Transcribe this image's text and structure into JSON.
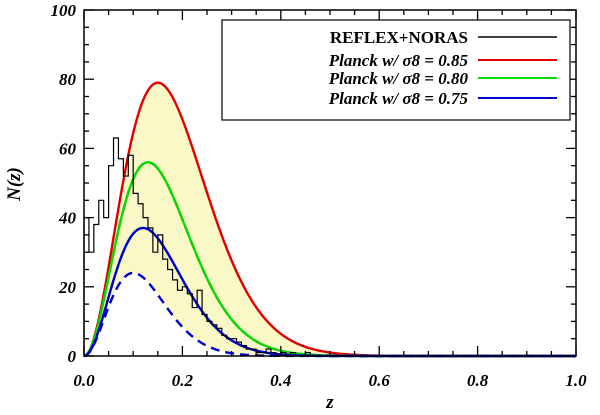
{
  "chart_data": {
    "type": "line",
    "title": "",
    "xlabel": "z",
    "ylabel": "N(z)",
    "xlim": [
      0.0,
      1.0
    ],
    "ylim": [
      0,
      100
    ],
    "x_ticks": [
      {
        "value": 0.0,
        "label": "0.0"
      },
      {
        "value": 0.2,
        "label": "0.2"
      },
      {
        "value": 0.4,
        "label": "0.4"
      },
      {
        "value": 0.6,
        "label": "0.6"
      },
      {
        "value": 0.8,
        "label": "0.8"
      },
      {
        "value": 1.0,
        "label": "1.0"
      }
    ],
    "y_ticks": [
      {
        "value": 0,
        "label": "0"
      },
      {
        "value": 20,
        "label": "20"
      },
      {
        "value": 40,
        "label": "40"
      },
      {
        "value": 60,
        "label": "60"
      },
      {
        "value": 80,
        "label": "80"
      },
      {
        "value": 100,
        "label": "100"
      }
    ],
    "legend": {
      "position": "top-right",
      "entries": [
        {
          "label": "REFLEX+NORAS",
          "color": "#000000",
          "style": "step"
        },
        {
          "label": "Planck w/ σ8 = 0.85",
          "color": "#e00000",
          "style": "solid"
        },
        {
          "label": "Planck w/ σ8 = 0.80",
          "color": "#00dd00",
          "style": "solid"
        },
        {
          "label": "Planck w/ σ8 = 0.75",
          "color": "#0000cc",
          "style": "solid"
        }
      ]
    },
    "shaded_band": {
      "between": [
        "Planck w/ σ8 = 0.85",
        "Planck w/ σ8 = 0.75 dashed"
      ],
      "color": "#fbf8c8"
    },
    "series": [
      {
        "name": "REFLEX+NORAS",
        "kind": "step",
        "color": "#000000",
        "bin_width": 0.01,
        "bin_starts": [
          0.0,
          0.01,
          0.02,
          0.03,
          0.04,
          0.05,
          0.06,
          0.07,
          0.08,
          0.09,
          0.1,
          0.11,
          0.12,
          0.13,
          0.14,
          0.15,
          0.16,
          0.17,
          0.18,
          0.19,
          0.2,
          0.21,
          0.22,
          0.23,
          0.24,
          0.25,
          0.26,
          0.27,
          0.28,
          0.29,
          0.3,
          0.31,
          0.32,
          0.33,
          0.34,
          0.35,
          0.36,
          0.37,
          0.38,
          0.39,
          0.4,
          0.41,
          0.42,
          0.43,
          0.44,
          0.45,
          0.46
        ],
        "values": [
          40,
          30,
          38,
          45,
          40,
          55,
          63,
          57,
          52,
          58,
          47,
          44,
          40,
          37,
          30,
          35,
          28,
          25,
          22,
          19,
          20,
          18,
          14,
          19,
          12,
          10,
          9,
          8,
          6,
          5,
          5,
          4,
          3,
          2,
          2,
          1,
          1,
          2,
          1,
          0,
          1,
          0,
          1,
          0,
          0,
          1,
          0
        ]
      },
      {
        "name": "Planck w/ σ8 = 0.85",
        "color": "#e00000",
        "dash": false,
        "amplitude": 79,
        "peak_z": 0.15
      },
      {
        "name": "Planck w/ σ8 = 0.85 dashed",
        "color": "#e00000",
        "dash": true,
        "amplitude": 56,
        "peak_z": 0.13
      },
      {
        "name": "Planck w/ σ8 = 0.80",
        "color": "#00dd00",
        "dash": false,
        "amplitude": 56,
        "peak_z": 0.13
      },
      {
        "name": "Planck w/ σ8 = 0.80 dashed",
        "color": "#00dd00",
        "dash": true,
        "amplitude": 37,
        "peak_z": 0.12
      },
      {
        "name": "Planck w/ σ8 = 0.75",
        "color": "#0000cc",
        "dash": false,
        "amplitude": 37,
        "peak_z": 0.12
      },
      {
        "name": "Planck w/ σ8 = 0.75 dashed",
        "color": "#0000cc",
        "dash": true,
        "amplitude": 24,
        "peak_z": 0.1
      }
    ]
  }
}
